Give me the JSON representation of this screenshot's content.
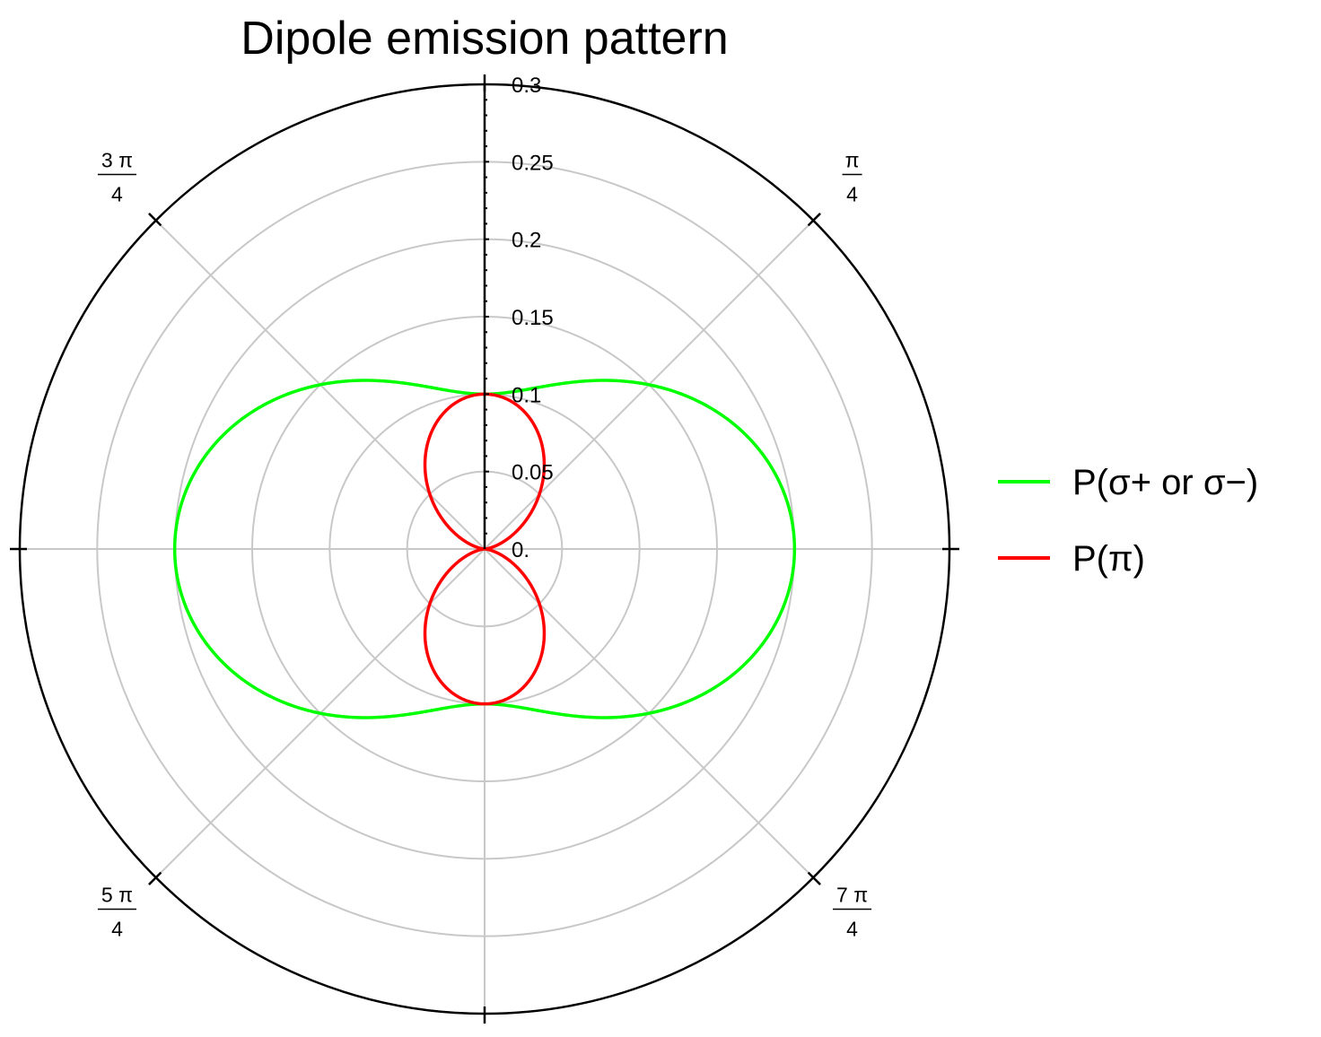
{
  "chart_data": {
    "type": "polar-line",
    "title": "Dipole emission pattern",
    "radial_axis": {
      "range": [
        0,
        0.3
      ],
      "tick_labels": [
        "0.",
        "0.05",
        "0.1",
        "0.15",
        "0.2",
        "0.25",
        "0.3"
      ],
      "tick_values": [
        0,
        0.05,
        0.1,
        0.15,
        0.2,
        0.25,
        0.3
      ],
      "minor_tick_step": 0.01
    },
    "angular_axis": {
      "unit": "radians",
      "labels": [
        {
          "numerator": "π",
          "denominator": "4",
          "value": 0.7854
        },
        {
          "numerator": "3 π",
          "denominator": "4",
          "value": 2.3562
        },
        {
          "numerator": "5 π",
          "denominator": "4",
          "value": 3.927
        },
        {
          "numerator": "7 π",
          "denominator": "4",
          "value": 5.4978
        }
      ],
      "gridline_angles": [
        0,
        0.7854,
        1.5708,
        2.3562,
        3.1416,
        3.927,
        4.7124,
        5.4978
      ]
    },
    "grid": true,
    "legend_position": "right",
    "colors": {
      "sigma": "#00ff00",
      "pi": "#ff0000",
      "grid": "#c8c8c8",
      "frame": "#000000"
    },
    "series": [
      {
        "name": "P(σ+ or σ−)",
        "color": "#00ff00",
        "formula": "0.2 - 0.1*sin(θ)^2",
        "theta": [
          0,
          0.2618,
          0.5236,
          0.7854,
          1.0472,
          1.309,
          1.5708,
          1.8326,
          2.0944,
          2.3562,
          2.618,
          2.8798,
          3.1416,
          3.4034,
          3.6652,
          3.927,
          4.1888,
          4.4506,
          4.7124,
          4.9742,
          5.236,
          5.4978,
          5.7596,
          6.0214
        ],
        "r": [
          0.2,
          0.1933,
          0.175,
          0.15,
          0.125,
          0.1067,
          0.1,
          0.1067,
          0.125,
          0.15,
          0.175,
          0.1933,
          0.2,
          0.1933,
          0.175,
          0.15,
          0.125,
          0.1067,
          0.1,
          0.1067,
          0.125,
          0.15,
          0.175,
          0.1933
        ]
      },
      {
        "name": "P(π)",
        "color": "#ff0000",
        "formula": "0.1*sin(θ)^2",
        "theta": [
          0,
          0.2618,
          0.5236,
          0.7854,
          1.0472,
          1.309,
          1.5708,
          1.8326,
          2.0944,
          2.3562,
          2.618,
          2.8798,
          3.1416,
          3.4034,
          3.6652,
          3.927,
          4.1888,
          4.4506,
          4.7124,
          4.9742,
          5.236,
          5.4978,
          5.7596,
          6.0214
        ],
        "r": [
          0,
          0.0067,
          0.025,
          0.05,
          0.075,
          0.0933,
          0.1,
          0.0933,
          0.075,
          0.05,
          0.025,
          0.0067,
          0,
          0.0067,
          0.025,
          0.05,
          0.075,
          0.0933,
          0.1,
          0.0933,
          0.075,
          0.05,
          0.025,
          0.0067
        ]
      }
    ]
  },
  "legend": {
    "items": [
      {
        "label": "P(σ+ or σ−)",
        "color": "#00ff00"
      },
      {
        "label": "P(π)",
        "color": "#ff0000"
      }
    ]
  }
}
